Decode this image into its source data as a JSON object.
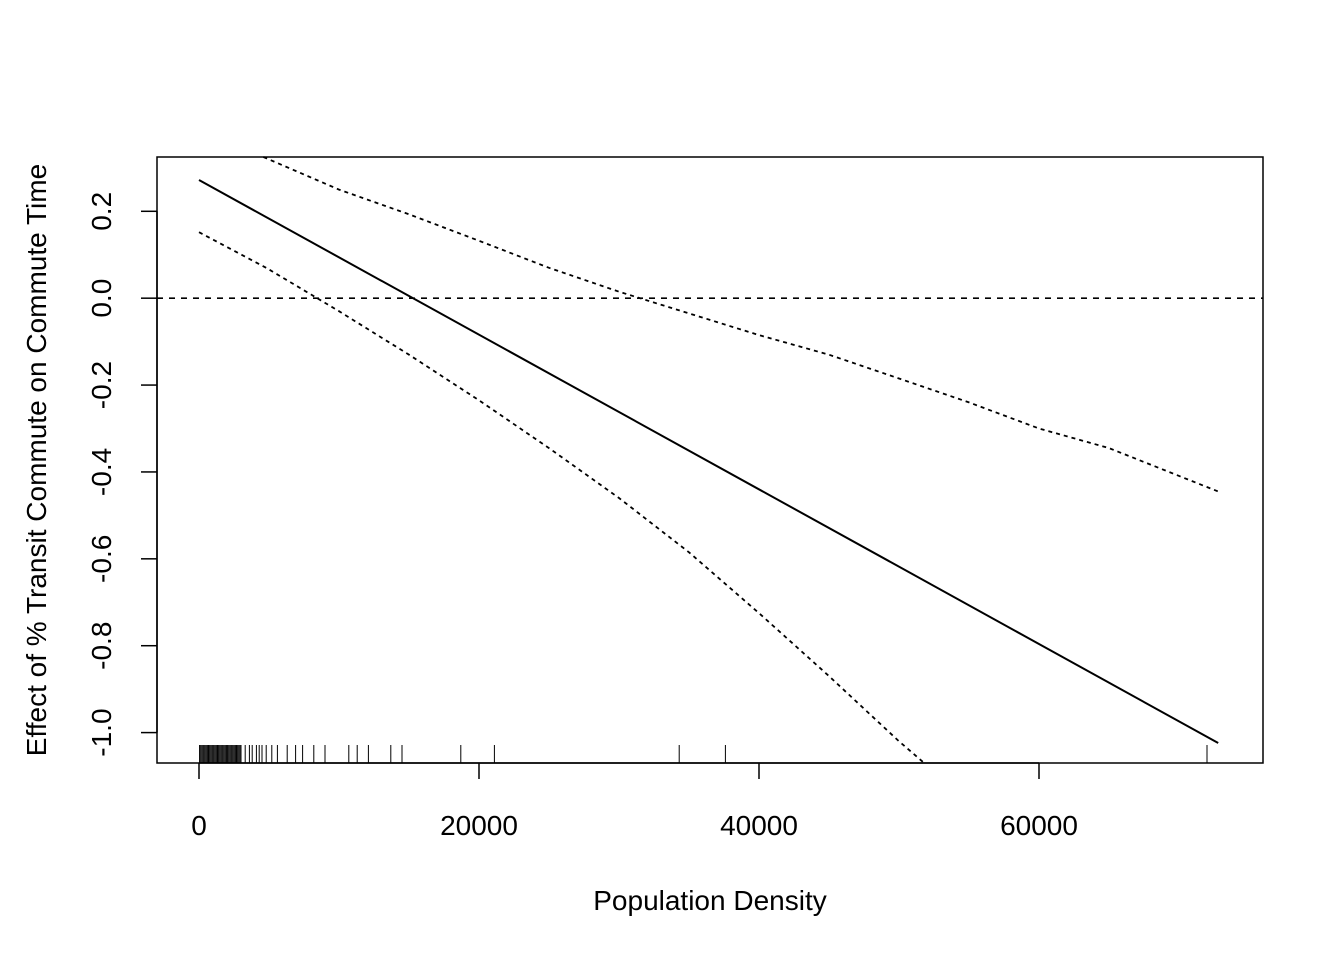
{
  "chart_data": {
    "type": "line",
    "xlabel": "Population Density",
    "ylabel": "Effect of % Transit Commute on Commute Time",
    "xlim": [
      -3000,
      76000
    ],
    "ylim": [
      -1.07,
      0.325
    ],
    "xticks": [
      0,
      20000,
      40000,
      60000
    ],
    "xtick_labels": [
      "0",
      "20000",
      "40000",
      "60000"
    ],
    "yticks": [
      -1.0,
      -0.8,
      -0.6,
      -0.4,
      -0.2,
      0.0,
      0.2
    ],
    "ytick_labels": [
      "-1.0",
      "-0.8",
      "-0.6",
      "-0.4",
      "-0.2",
      "0.0",
      "0.2"
    ],
    "grid": false,
    "series": [
      {
        "line_style": "solid",
        "color": "#000000",
        "x": [
          0,
          72800
        ],
        "y": [
          0.272,
          -1.024
        ]
      },
      {
        "line_style": "dotted",
        "color": "#000000",
        "x": [
          0,
          4800,
          10000,
          15000,
          20000,
          25000,
          30000,
          35000,
          40000,
          45000,
          50000,
          51800
        ],
        "y": [
          0.152,
          0.07,
          -0.03,
          -0.13,
          -0.235,
          -0.345,
          -0.46,
          -0.585,
          -0.725,
          -0.87,
          -1.02,
          -1.07
        ]
      },
      {
        "line_style": "dotted",
        "color": "#000000",
        "x": [
          4600,
          10000,
          15000,
          20000,
          25000,
          30000,
          35000,
          40000,
          45000,
          50000,
          55000,
          60000,
          65000,
          72800
        ],
        "y": [
          0.325,
          0.25,
          0.193,
          0.132,
          0.07,
          0.015,
          -0.035,
          -0.085,
          -0.13,
          -0.185,
          -0.24,
          -0.3,
          -0.345,
          -0.445
        ]
      }
    ],
    "reference_line": {
      "y": 0.0,
      "line_style": "dashed",
      "color": "#000000"
    },
    "rug_x": [
      40,
      120,
      200,
      280,
      360,
      440,
      520,
      600,
      680,
      760,
      840,
      920,
      1000,
      1080,
      1160,
      1240,
      1320,
      1400,
      1480,
      1560,
      1640,
      1720,
      1800,
      1880,
      1960,
      2040,
      2120,
      2200,
      2280,
      2360,
      2440,
      2520,
      2600,
      2680,
      2760,
      2840,
      2920,
      3000,
      3300,
      3600,
      3800,
      4100,
      4300,
      4500,
      4800,
      5200,
      5600,
      6300,
      6900,
      7400,
      8200,
      9000,
      10700,
      11300,
      12100,
      13700,
      14500,
      18700,
      21100,
      34300,
      37600,
      72000
    ]
  }
}
